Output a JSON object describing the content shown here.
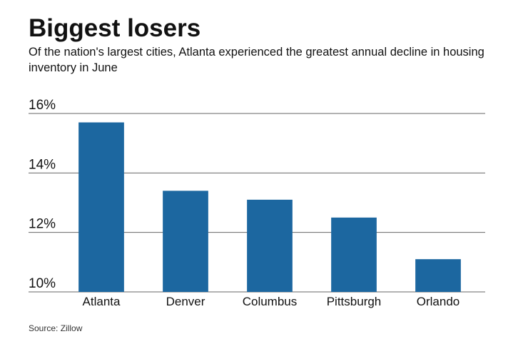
{
  "chart_data": {
    "type": "bar",
    "title": "Biggest losers",
    "subtitle": "Of the nation's largest cities, Atlanta experienced the greatest annual decline in housing inventory in June",
    "source": "Source: Zillow",
    "categories": [
      "Atlanta",
      "Denver",
      "Columbus",
      "Pittsburgh",
      "Orlando"
    ],
    "values": [
      15.7,
      13.4,
      13.1,
      12.5,
      11.1
    ],
    "color": "#1c67a0",
    "ylim": [
      10,
      16
    ],
    "yticks": [
      {
        "value": 10,
        "label": "10%"
      },
      {
        "value": 12,
        "label": "12%"
      },
      {
        "value": 14,
        "label": "14%"
      },
      {
        "value": 16,
        "label": "16%"
      }
    ],
    "grid": true
  }
}
